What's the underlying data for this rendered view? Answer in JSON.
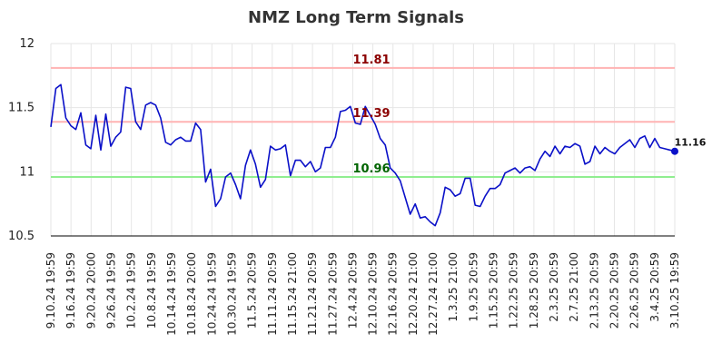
{
  "chart_data": {
    "type": "line",
    "title": "NMZ Long Term Signals",
    "xlabel": "",
    "ylabel": "",
    "ylim": [
      10.5,
      12
    ],
    "yticks": [
      "10.5",
      "11",
      "11.5",
      "12"
    ],
    "xtick_labels": [
      "9.10.24 19:59",
      "9.16.24 19:59",
      "9.20.24 20:00",
      "9.26.24 19:59",
      "10.2.24 19:59",
      "10.8.24 19:59",
      "10.14.24 19:59",
      "10.18.24 20:00",
      "10.24.24 19:59",
      "10.30.24 19:59",
      "11.5.24 20:59",
      "11.11.24 20:59",
      "11.15.24 21:00",
      "11.21.24 20:59",
      "11.27.24 20:59",
      "12.4.24 20:59",
      "12.10.24 20:59",
      "12.16.24 20:59",
      "12.20.24 21:00",
      "12.27.24 21:00",
      "1.3.25 21:00",
      "1.9.25 20:59",
      "1.15.25 20:59",
      "1.22.25 20:59",
      "1.28.25 20:59",
      "2.3.25 20:59",
      "2.7.25 21:00",
      "2.13.25 20:59",
      "2.20.25 20:59",
      "2.26.25 20:59",
      "3.4.25 20:59",
      "3.10.25 19:59"
    ],
    "series": [
      {
        "values": [
          11.35,
          11.65,
          11.68,
          11.42,
          11.36,
          11.33,
          11.46,
          11.21,
          11.18,
          11.44,
          11.17,
          11.45,
          11.2,
          11.27,
          11.31,
          11.66,
          11.65,
          11.39,
          11.33,
          11.52,
          11.54,
          11.52,
          11.42,
          11.23,
          11.21,
          11.25,
          11.27,
          11.24,
          11.24,
          11.38,
          11.33,
          10.92,
          11.02,
          10.73,
          10.79,
          10.96,
          10.99,
          10.9,
          10.79,
          11.05,
          11.17,
          11.06,
          10.88,
          10.94,
          11.2,
          11.17,
          11.18,
          11.21,
          10.97,
          11.09,
          11.09,
          11.04,
          11.08,
          11.0,
          11.03,
          11.19,
          11.19,
          11.27,
          11.47,
          11.48,
          11.51,
          11.38,
          11.37,
          11.51,
          11.44,
          11.37,
          11.26,
          11.21,
          11.03,
          10.99,
          10.93,
          10.8,
          10.67,
          10.75,
          10.64,
          10.65,
          10.61,
          10.58,
          10.68,
          10.88,
          10.86,
          10.81,
          10.83,
          10.95,
          10.95,
          10.74,
          10.73,
          10.81,
          10.87,
          10.87,
          10.9,
          10.99,
          11.01,
          11.03,
          10.99,
          11.03,
          11.04,
          11.01,
          11.1,
          11.16,
          11.12,
          11.2,
          11.14,
          11.2,
          11.19,
          11.22,
          11.2,
          11.06,
          11.08,
          11.2,
          11.14,
          11.19,
          11.16,
          11.14,
          11.19,
          11.22,
          11.25,
          11.19,
          11.26,
          11.28,
          11.19,
          11.26,
          11.19,
          11.18,
          11.17,
          11.16
        ],
        "color": "#0a10c8"
      }
    ],
    "reference_lines": [
      {
        "value": 11.81,
        "label": "11.81",
        "line_color": "#ffb3b3",
        "text_color": "#8b0000"
      },
      {
        "value": 11.39,
        "label": "11.39",
        "line_color": "#ffb3b3",
        "text_color": "#8b0000"
      },
      {
        "value": 10.96,
        "label": "10.96",
        "line_color": "#90ee90",
        "text_color": "#006400"
      }
    ],
    "last_value_label": "11.16",
    "grid": true,
    "legend": "none"
  }
}
